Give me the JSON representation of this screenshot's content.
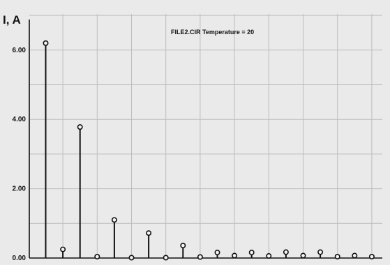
{
  "chart_data": {
    "type": "stem",
    "title": "FILE2.CIR Temperature = 20",
    "ylabel": "I, A",
    "xlabel": "",
    "ylim": [
      0,
      7
    ],
    "yticks": [
      {
        "value": 0,
        "label": "0.00"
      },
      {
        "value": 2,
        "label": "2.00"
      },
      {
        "value": 4,
        "label": "4.00"
      },
      {
        "value": 6,
        "label": "6.00"
      }
    ],
    "grid": true,
    "series": [
      {
        "x": [
          1,
          2,
          3,
          4,
          5,
          6,
          7,
          8,
          9,
          10,
          11,
          12,
          13,
          14,
          15,
          16,
          17,
          18,
          19,
          20
        ],
        "values": [
          6.2,
          0.25,
          3.78,
          0.04,
          1.1,
          0.01,
          0.72,
          0.01,
          0.36,
          0.03,
          0.16,
          0.07,
          0.16,
          0.06,
          0.17,
          0.07,
          0.17,
          0.04,
          0.07,
          0.04
        ]
      }
    ]
  }
}
